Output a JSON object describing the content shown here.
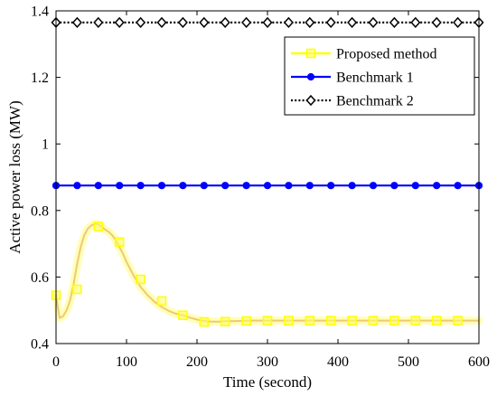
{
  "chart_data": {
    "type": "line",
    "xlabel": "Time (second)",
    "ylabel": "Active power loss (MW)",
    "xlim": [
      0,
      600
    ],
    "ylim": [
      0.4,
      1.4
    ],
    "x_ticks": [
      0,
      100,
      200,
      300,
      400,
      500,
      600
    ],
    "y_ticks": [
      0.4,
      0.6,
      0.8,
      1,
      1.2,
      1.4
    ],
    "x_tick_labels": [
      "0",
      "100",
      "200",
      "300",
      "400",
      "500",
      "600"
    ],
    "y_tick_labels": [
      "0.4",
      "0.6",
      "0.8",
      "1",
      "1.2",
      "1.4"
    ],
    "grid": false,
    "legend_position": "top-right",
    "series": [
      {
        "name": "Proposed method",
        "color": "#ffff00",
        "marker": "square",
        "curve": {
          "x": [
            0,
            5,
            10,
            15,
            20,
            25,
            30,
            35,
            40,
            45,
            50,
            55,
            60,
            65,
            70,
            75,
            80,
            85,
            90,
            95,
            100,
            110,
            120,
            130,
            140,
            150,
            160,
            170,
            180,
            190,
            200,
            210,
            220,
            230,
            240,
            260,
            280,
            300,
            350,
            400,
            450,
            500,
            550,
            600
          ],
          "y": [
            0.545,
            0.477,
            0.482,
            0.5,
            0.53,
            0.58,
            0.64,
            0.69,
            0.725,
            0.745,
            0.755,
            0.76,
            0.758,
            0.75,
            0.742,
            0.735,
            0.725,
            0.71,
            0.69,
            0.67,
            0.645,
            0.605,
            0.57,
            0.545,
            0.525,
            0.51,
            0.498,
            0.49,
            0.485,
            0.478,
            0.472,
            0.468,
            0.466,
            0.466,
            0.467,
            0.468,
            0.469,
            0.469,
            0.469,
            0.469,
            0.469,
            0.469,
            0.469,
            0.469
          ]
        },
        "markers": {
          "x": [
            0,
            30,
            60,
            90,
            120,
            150,
            180,
            210,
            240,
            270,
            300,
            330,
            360,
            390,
            420,
            450,
            480,
            510,
            540,
            570
          ],
          "y": [
            0.545,
            0.563,
            0.752,
            0.705,
            0.593,
            0.528,
            0.485,
            0.465,
            0.466,
            0.468,
            0.469,
            0.469,
            0.469,
            0.469,
            0.469,
            0.469,
            0.469,
            0.469,
            0.469,
            0.469
          ]
        }
      },
      {
        "name": "Benchmark 1",
        "color": "#0000ff",
        "marker": "circle",
        "curve": {
          "x": [
            0,
            600
          ],
          "y": [
            0.875,
            0.875
          ]
        },
        "markers": {
          "x": [
            0,
            30,
            60,
            90,
            120,
            150,
            180,
            210,
            240,
            270,
            300,
            330,
            360,
            390,
            420,
            450,
            480,
            510,
            540,
            570,
            600
          ],
          "y": [
            0.875,
            0.875,
            0.875,
            0.875,
            0.875,
            0.875,
            0.875,
            0.875,
            0.875,
            0.875,
            0.875,
            0.875,
            0.875,
            0.875,
            0.875,
            0.875,
            0.875,
            0.875,
            0.875,
            0.875,
            0.875
          ]
        }
      },
      {
        "name": "Benchmark 2",
        "color": "#000000",
        "marker": "diamond",
        "line_style": "dotted",
        "curve": {
          "x": [
            0,
            600
          ],
          "y": [
            1.365,
            1.365
          ]
        },
        "markers": {
          "x": [
            0,
            30,
            60,
            90,
            120,
            150,
            180,
            210,
            240,
            270,
            300,
            330,
            360,
            390,
            420,
            450,
            480,
            510,
            540,
            570,
            600
          ],
          "y": [
            1.365,
            1.365,
            1.365,
            1.365,
            1.365,
            1.365,
            1.365,
            1.365,
            1.365,
            1.365,
            1.365,
            1.365,
            1.365,
            1.365,
            1.365,
            1.365,
            1.365,
            1.365,
            1.365,
            1.365,
            1.365
          ]
        }
      }
    ]
  }
}
